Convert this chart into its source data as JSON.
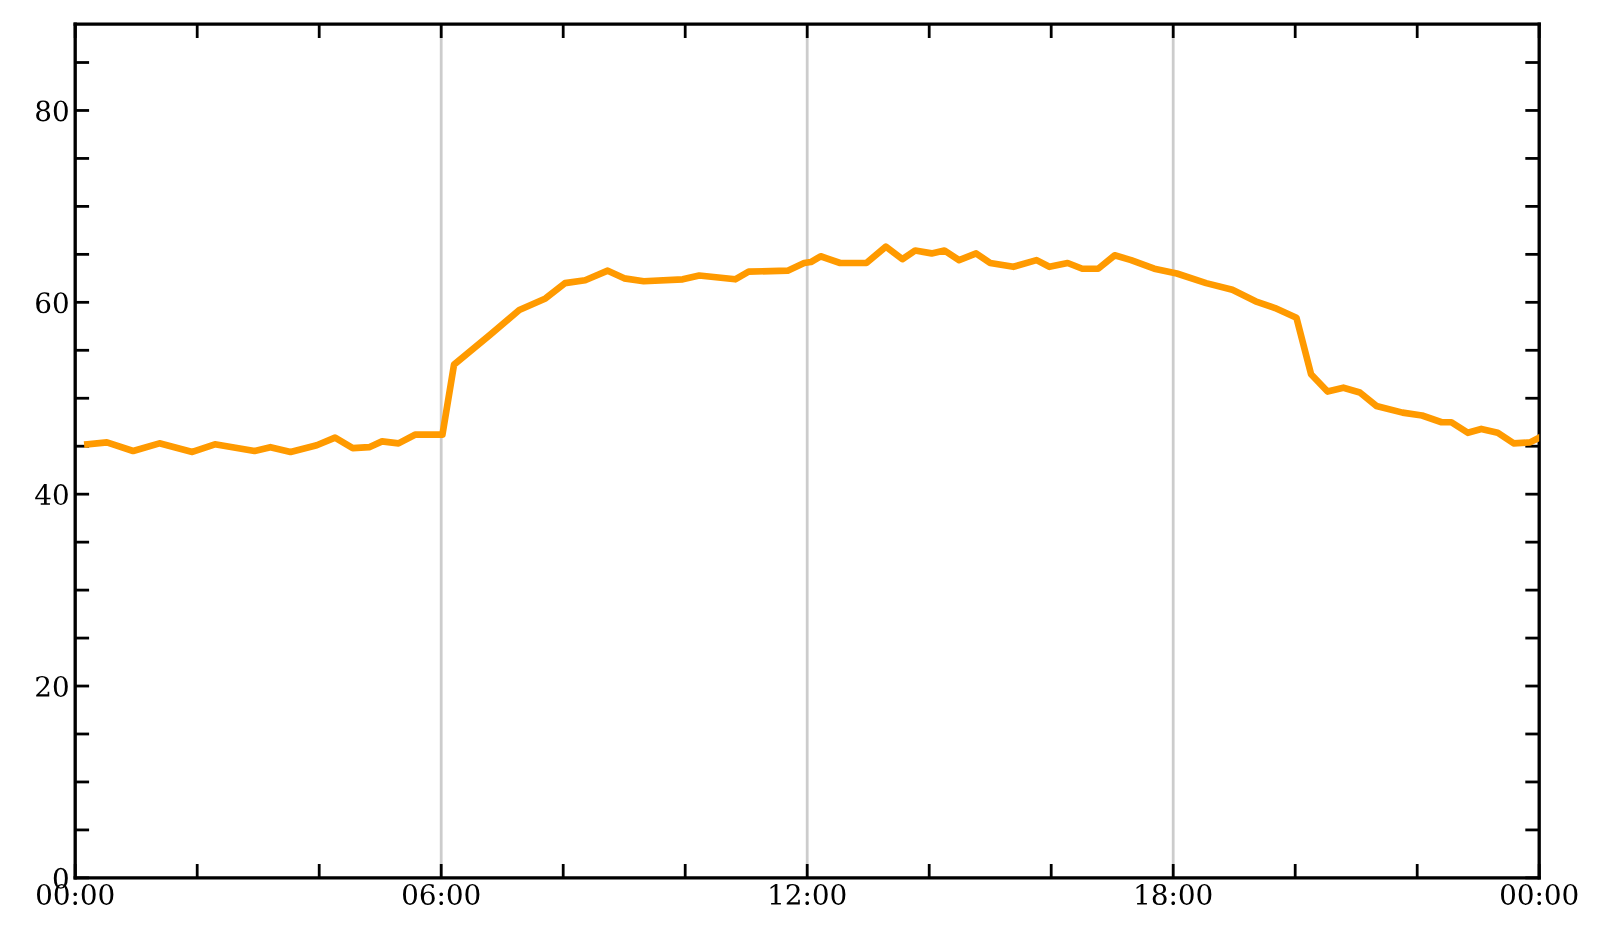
{
  "chart_data": {
    "type": "line",
    "x": [
      0.2,
      0.52,
      0.95,
      1.38,
      1.92,
      2.29,
      2.94,
      3.2,
      3.53,
      3.96,
      4.26,
      4.55,
      4.82,
      5.03,
      5.3,
      5.57,
      6.02,
      6.21,
      6.8,
      7.28,
      7.71,
      8.03,
      8.36,
      8.73,
      9.0,
      9.32,
      9.96,
      10.23,
      10.82,
      11.04,
      11.68,
      11.95,
      12.06,
      12.22,
      12.54,
      12.97,
      13.29,
      13.56,
      13.77,
      14.04,
      14.25,
      14.49,
      14.77,
      15.0,
      15.38,
      15.76,
      15.97,
      16.27,
      16.51,
      16.77,
      17.04,
      17.31,
      17.69,
      18.06,
      18.54,
      18.97,
      19.35,
      19.67,
      20.02,
      20.26,
      20.53,
      20.79,
      21.06,
      21.33,
      21.76,
      22.08,
      22.4,
      22.56,
      22.83,
      23.05,
      23.32,
      23.58,
      23.85,
      24.0
    ],
    "series": [
      {
        "values": [
          45.2,
          45.4,
          44.5,
          45.3,
          44.4,
          45.2,
          44.5,
          44.9,
          44.4,
          45.1,
          45.9,
          44.8,
          44.9,
          45.5,
          45.3,
          46.2,
          46.2,
          53.5,
          56.6,
          59.2,
          60.4,
          62.0,
          62.3,
          63.3,
          62.5,
          62.2,
          62.4,
          62.8,
          62.4,
          63.2,
          63.3,
          64.1,
          64.2,
          64.8,
          64.1,
          64.1,
          65.8,
          64.5,
          65.4,
          65.1,
          65.4,
          64.4,
          65.1,
          64.1,
          63.7,
          64.4,
          63.7,
          64.1,
          63.5,
          63.5,
          64.9,
          64.4,
          63.5,
          63.0,
          62.0,
          61.3,
          60.1,
          59.4,
          58.4,
          52.5,
          50.7,
          51.1,
          50.6,
          49.2,
          48.5,
          48.2,
          47.5,
          47.5,
          46.4,
          46.8,
          46.4,
          45.3,
          45.4,
          45.9
        ],
        "color": "#ff9a00"
      }
    ],
    "xlim": [
      0,
      24
    ],
    "xticks": [
      {
        "value": 0,
        "label": "00:00"
      },
      {
        "value": 2,
        "label": null
      },
      {
        "value": 4,
        "label": null
      },
      {
        "value": 6,
        "label": "06:00"
      },
      {
        "value": 8,
        "label": null
      },
      {
        "value": 10,
        "label": null
      },
      {
        "value": 12,
        "label": "12:00"
      },
      {
        "value": 14,
        "label": null
      },
      {
        "value": 16,
        "label": null
      },
      {
        "value": 18,
        "label": "18:00"
      },
      {
        "value": 20,
        "label": null
      },
      {
        "value": 22,
        "label": null
      },
      {
        "value": 24,
        "label": "00:00"
      }
    ],
    "ylim": [
      0,
      89
    ],
    "yticks": [
      0,
      {
        "value": 5,
        "label": null
      },
      {
        "value": 10,
        "label": null
      },
      {
        "value": 15,
        "label": null
      },
      20,
      {
        "value": 25,
        "label": null
      },
      {
        "value": 30,
        "label": null
      },
      {
        "value": 35,
        "label": null
      },
      40,
      {
        "value": 45,
        "label": null
      },
      {
        "value": 50,
        "label": null
      },
      {
        "value": 55,
        "label": null
      },
      60,
      {
        "value": 65,
        "label": null
      },
      {
        "value": 70,
        "label": null
      },
      {
        "value": 75,
        "label": null
      },
      80,
      {
        "value": 85,
        "label": null
      }
    ],
    "ref_lines": [
      {
        "axis": "x",
        "value": 6,
        "color": "#cccccc"
      },
      {
        "axis": "x",
        "value": 12,
        "color": "#cccccc"
      },
      {
        "axis": "x",
        "value": 18,
        "color": "#cccccc"
      }
    ],
    "grid": false,
    "marker": "none",
    "line_style": "solid",
    "legend": false
  }
}
